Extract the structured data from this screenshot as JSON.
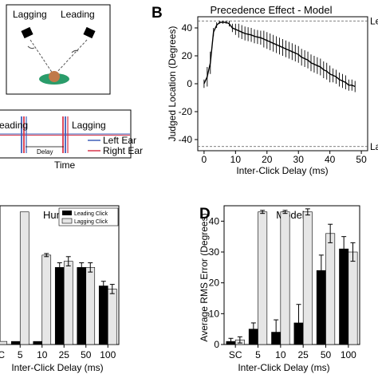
{
  "colors": {
    "left_ear": "#3f5fb8",
    "right_ear": "#d9364a",
    "lagging_bar": "#e6e6e6",
    "leading_bar": "#000000",
    "listener_head": "#c07a4a",
    "listener_body": "#2a9c6a"
  },
  "panel_a": {
    "labels": {
      "lagging": "Lagging",
      "leading": "Leading"
    }
  },
  "timeline": {
    "leading_label": "eading",
    "lagging_label": "Lagging",
    "delay_label": "Delay",
    "time_label": "Time",
    "legend": [
      "Left Ear",
      "Right Ear"
    ]
  },
  "chart_data": [
    {
      "id": "B",
      "panel_letter": "B",
      "type": "line",
      "title": "Precedence Effect - Model",
      "xlabel": "Inter-Click Delay (ms)",
      "ylabel": "Judged Location (Degrees)",
      "xlim": [
        -2,
        52
      ],
      "ylim": [
        -48,
        48
      ],
      "xticks": [
        0,
        10,
        20,
        30,
        40,
        50
      ],
      "yticks": [
        -40,
        -20,
        0,
        20,
        40
      ],
      "reference_lines": [
        45,
        -45
      ],
      "reference_labels": [
        "Le",
        "La"
      ],
      "x": [
        0,
        1,
        2,
        3,
        4,
        5,
        6,
        7,
        8,
        9,
        10,
        11,
        12,
        13,
        14,
        15,
        16,
        17,
        18,
        19,
        20,
        21,
        22,
        23,
        24,
        25,
        26,
        27,
        28,
        29,
        30,
        31,
        32,
        33,
        34,
        35,
        36,
        37,
        38,
        39,
        40,
        41,
        42,
        43,
        44,
        45,
        46,
        47,
        48
      ],
      "y": [
        0,
        5,
        15,
        37,
        42,
        44,
        44,
        44,
        43,
        40,
        39,
        38,
        37,
        36,
        35.5,
        35,
        34,
        33.5,
        33,
        32,
        31,
        30,
        29,
        28,
        27,
        26,
        25,
        24,
        23,
        22,
        21,
        19,
        18,
        17,
        15,
        14,
        13,
        12,
        10,
        9,
        7,
        6,
        5,
        3,
        2,
        1,
        -1,
        -1,
        -2
      ],
      "err": [
        3,
        7,
        8,
        3,
        2,
        1,
        1,
        1,
        2,
        3,
        4,
        5,
        5,
        5,
        5,
        5,
        5,
        5,
        5,
        6,
        6,
        6,
        6,
        6,
        6,
        6,
        6,
        6,
        6,
        6,
        6,
        6,
        6,
        6,
        6,
        6,
        6,
        6,
        6,
        6,
        6,
        5,
        5,
        5,
        5,
        5,
        4,
        4,
        4
      ]
    },
    {
      "id": "C",
      "panel_letter": "",
      "type": "bar",
      "title": "Human",
      "xlabel": "Inter-Click Delay (ms)",
      "ylabel": "",
      "categories": [
        "SC",
        "5",
        "10",
        "25",
        "50",
        "100"
      ],
      "ylim": [
        0,
        45
      ],
      "legend": [
        "Leading Click",
        "Lagging Click"
      ],
      "series": [
        {
          "name": "Leading Click",
          "values": [
            0,
            1,
            1,
            25,
            25,
            19
          ],
          "err": [
            0,
            0,
            0,
            1.5,
            1.5,
            1.5
          ]
        },
        {
          "name": "Lagging Click",
          "values": [
            1,
            43,
            29,
            27,
            25,
            18
          ],
          "err": [
            0,
            0,
            0.5,
            1.5,
            1.5,
            1.5
          ]
        }
      ]
    },
    {
      "id": "D",
      "panel_letter": "D",
      "type": "bar",
      "title": "Model",
      "xlabel": "Inter-Click Delay (ms)",
      "ylabel": "Average RMS Error (Degrees)",
      "categories": [
        "SC",
        "5",
        "10",
        "25",
        "50",
        "100"
      ],
      "ylim": [
        0,
        45
      ],
      "yticks": [
        0,
        10,
        20,
        30,
        40
      ],
      "series": [
        {
          "name": "Leading Click",
          "values": [
            1,
            5,
            4,
            7,
            24,
            31
          ],
          "err": [
            1,
            2,
            4,
            6,
            5,
            4
          ]
        },
        {
          "name": "Lagging Click",
          "values": [
            1.5,
            43,
            43,
            43,
            36,
            30
          ],
          "err": [
            1,
            0.5,
            0.5,
            1,
            3,
            3
          ]
        }
      ]
    }
  ]
}
